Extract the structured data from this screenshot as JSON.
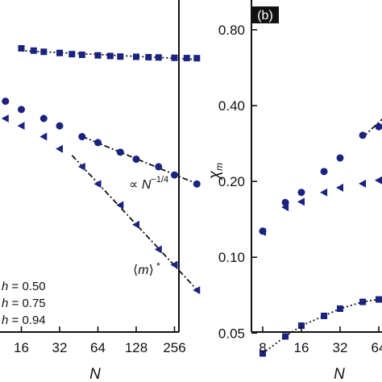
{
  "colors": {
    "marker": "#1a237e",
    "axis": "#111111",
    "fit": "#111111",
    "panel_label_bg": "#111111"
  },
  "chart_data": [
    {
      "panel": "a",
      "type": "scatter",
      "x_scale": "log2",
      "xlabel": "N",
      "ylabel": "",
      "x_ticks": [
        16,
        32,
        64,
        128,
        256
      ],
      "x_tick_labels": [
        "16",
        "32",
        "64",
        "128",
        "256"
      ],
      "y_axis": "log",
      "y_ticks_visible": false,
      "legend": {
        "position": "bottom-left",
        "entries": [
          {
            "label": "h = 0.50",
            "marker": "square"
          },
          {
            "label": "h = 0.75",
            "marker": "circle"
          },
          {
            "label": "h = 0.94",
            "marker": "triangle-left"
          }
        ]
      },
      "annotations": [
        "∝ N^{-1/4}",
        "⟨m⟩*"
      ],
      "series": [
        {
          "name": "h = 0.50",
          "marker": "square",
          "points": [
            [
              16,
              0.84
            ],
            [
              20,
              0.82
            ],
            [
              24,
              0.81
            ],
            [
              32,
              0.8
            ],
            [
              40,
              0.79
            ],
            [
              48,
              0.785
            ],
            [
              64,
              0.78
            ],
            [
              80,
              0.775
            ],
            [
              96,
              0.77
            ],
            [
              128,
              0.768
            ],
            [
              160,
              0.765
            ],
            [
              192,
              0.763
            ],
            [
              256,
              0.76
            ],
            [
              320,
              0.758
            ],
            [
              384,
              0.757
            ]
          ],
          "fit": {
            "style": "dotted",
            "x_range": [
              16,
              400
            ]
          }
        },
        {
          "name": "h = 0.75",
          "marker": "circle",
          "points": [
            [
              12,
              0.48
            ],
            [
              16,
              0.44
            ],
            [
              24,
              0.4
            ],
            [
              32,
              0.37
            ],
            [
              48,
              0.33
            ],
            [
              64,
              0.31
            ],
            [
              96,
              0.28
            ],
            [
              128,
              0.26
            ],
            [
              192,
              0.24
            ],
            [
              256,
              0.22
            ],
            [
              384,
              0.2
            ]
          ],
          "fit": {
            "style": "dash-dot",
            "x_range": [
              48,
              400
            ],
            "label": "∝ N^{-1/4}"
          }
        },
        {
          "name": "h = 0.94",
          "marker": "triangle-left",
          "points": [
            [
              12,
              0.4
            ],
            [
              16,
              0.37
            ],
            [
              24,
              0.33
            ],
            [
              32,
              0.29
            ],
            [
              48,
              0.24
            ],
            [
              64,
              0.2
            ],
            [
              96,
              0.16
            ],
            [
              128,
              0.13
            ],
            [
              192,
              0.1
            ],
            [
              256,
              0.085
            ],
            [
              384,
              0.065
            ]
          ],
          "fit": {
            "style": "dash-dot",
            "x_range": [
              40,
              400
            ],
            "label": "⟨m⟩*"
          }
        }
      ]
    },
    {
      "panel": "b",
      "panel_label": "(b)",
      "type": "scatter",
      "x_scale": "log2",
      "xlabel": "N",
      "ylabel": "χ_m",
      "y_scale": "log",
      "ylim": [
        0.039,
        1.0
      ],
      "x_ticks": [
        8,
        16,
        32,
        64
      ],
      "x_tick_labels": [
        "8",
        "16",
        "32",
        "64"
      ],
      "y_ticks": [
        0.05,
        0.1,
        0.2,
        0.4,
        0.8
      ],
      "y_tick_labels": [
        "0.05",
        "0.10",
        "0.20",
        "0.40",
        "0.80"
      ],
      "series": [
        {
          "name": "h = 0.50",
          "marker": "square",
          "points": [
            [
              8,
              0.0415
            ],
            [
              12,
              0.0485
            ],
            [
              16,
              0.0535
            ],
            [
              24,
              0.0585
            ],
            [
              32,
              0.0625
            ],
            [
              48,
              0.0665
            ],
            [
              64,
              0.068
            ],
            [
              80,
              0.0695
            ]
          ],
          "fit": {
            "style": "dotted",
            "x_range": [
              8,
              96
            ]
          }
        },
        {
          "name": "h = 0.75",
          "marker": "circle",
          "points": [
            [
              8,
              0.127
            ],
            [
              12,
              0.165
            ],
            [
              16,
              0.181
            ],
            [
              24,
              0.219
            ],
            [
              32,
              0.248
            ],
            [
              48,
              0.305
            ],
            [
              64,
              0.33
            ],
            [
              80,
              0.39
            ]
          ],
          "fit": {
            "style": "dash-dot",
            "x_range": [
              48,
              96
            ]
          }
        },
        {
          "name": "h = 0.94",
          "marker": "triangle-left",
          "points": [
            [
              8,
              0.126
            ],
            [
              12,
              0.158
            ],
            [
              16,
              0.166
            ],
            [
              24,
              0.181
            ],
            [
              32,
              0.189
            ],
            [
              48,
              0.196
            ],
            [
              64,
              0.202
            ],
            [
              80,
              0.215
            ]
          ],
          "fit": null
        }
      ]
    }
  ]
}
